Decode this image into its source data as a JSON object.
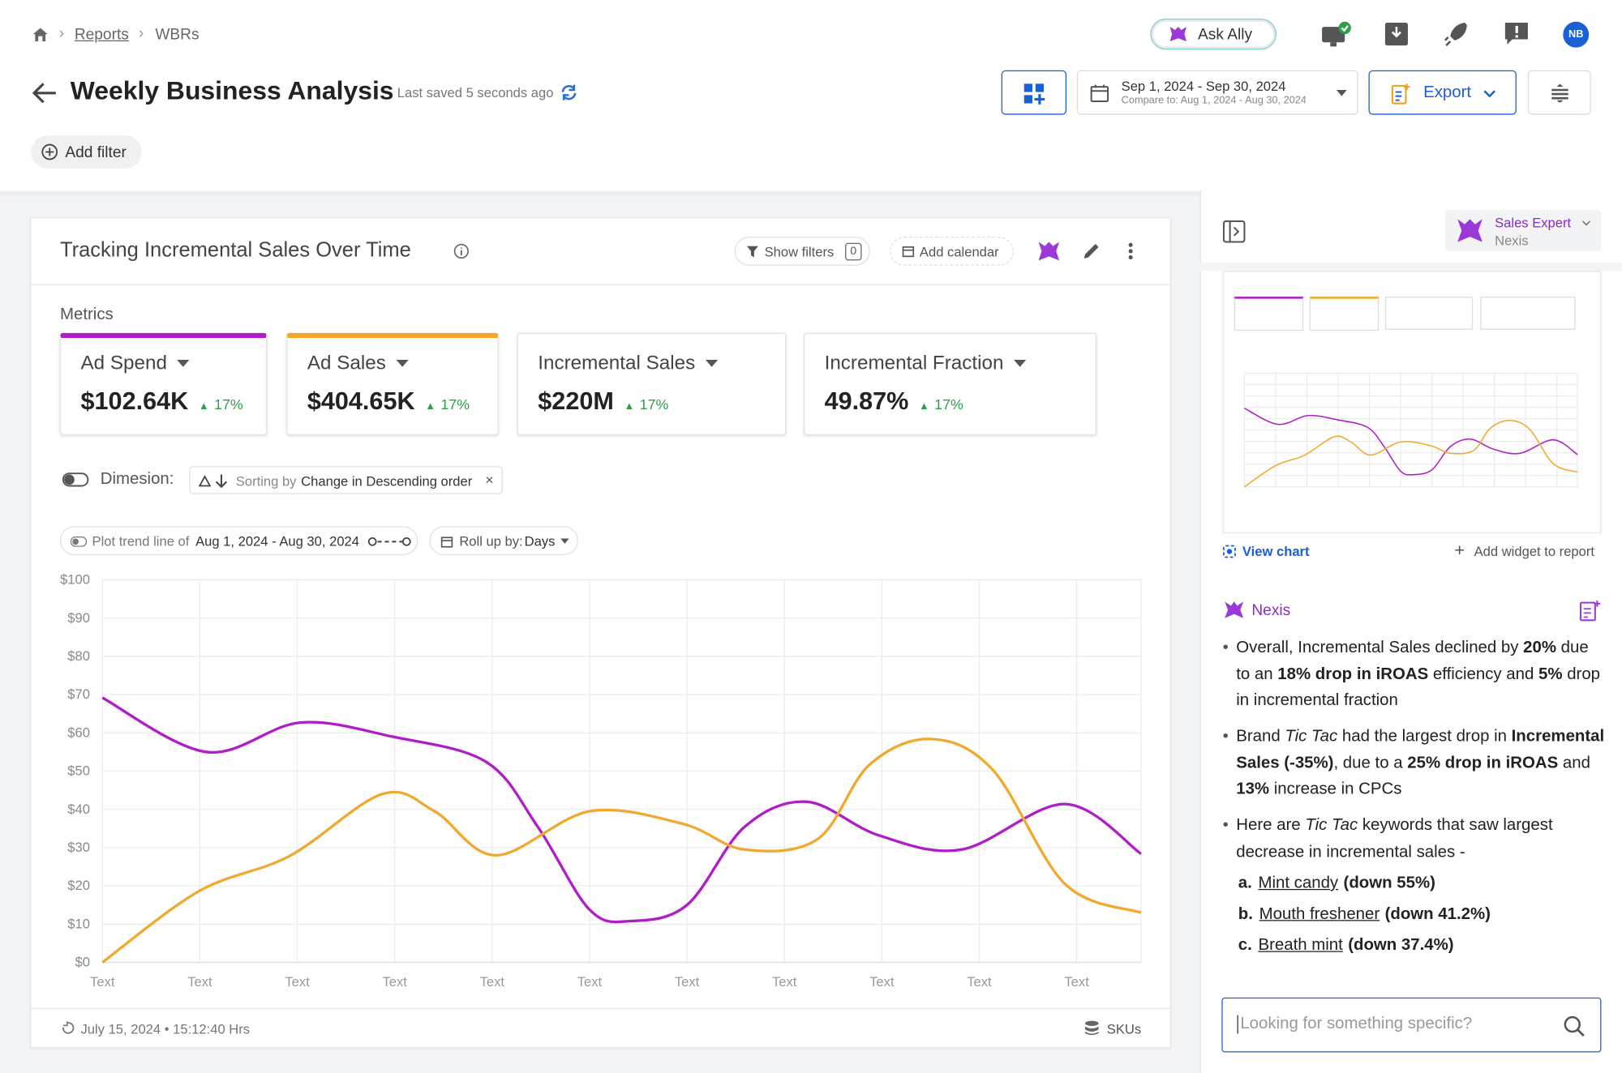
{
  "breadcrumb": [
    "Reports",
    "WBRs"
  ],
  "header": {
    "title": "Weekly Business Analysis",
    "saved": "Last saved 5 seconds ago",
    "ask": "Ask Ally",
    "avatar": "NB",
    "date_range": "Sep 1, 2024 - Sep 30, 2024",
    "compare": "Compare to: Aug 1, 2024 - Aug 30, 2024",
    "export": "Export"
  },
  "add_filter": "Add filter",
  "widget": {
    "title": "Tracking Incremental Sales Over Time",
    "show_filters": "Show filters",
    "filter_count": "0",
    "add_calendar": "Add calendar",
    "metrics_label": "Metrics",
    "metrics": [
      {
        "name": "Ad Spend",
        "value": "$102.64K",
        "change": "17%",
        "color": "#b01cc8"
      },
      {
        "name": "Ad Sales",
        "value": "$404.65K",
        "change": "17%",
        "color": "#f5a623"
      },
      {
        "name": "Incremental Sales",
        "value": "$220M",
        "change": "17%"
      },
      {
        "name": "Incremental Fraction",
        "value": "49.87%",
        "change": "17%"
      }
    ],
    "dimension_label": "Dimesion:",
    "sorting": "Sorting by",
    "sort_field": "Change in Descending order",
    "trend_prefix": "Plot trend line of",
    "trend_range": "Aug 1, 2024 - Aug 30, 2024",
    "rollup": "Roll up by:",
    "rollup_value": "Days",
    "timestamp": "July 15, 2024 • 15:12:40 Hrs",
    "skus": "SKUs"
  },
  "chart_data": {
    "type": "line",
    "grid": true,
    "xlim": [
      0,
      10.66
    ],
    "xticks": [
      {
        "value": 0,
        "label": "Text"
      },
      {
        "value": 1,
        "label": "Text"
      },
      {
        "value": 2,
        "label": "Text"
      },
      {
        "value": 3,
        "label": "Text"
      },
      {
        "value": 4,
        "label": "Text"
      },
      {
        "value": 5,
        "label": "Text"
      },
      {
        "value": 6,
        "label": "Text"
      },
      {
        "value": 7,
        "label": "Text"
      },
      {
        "value": 8,
        "label": "Text"
      },
      {
        "value": 9,
        "label": "Text"
      },
      {
        "value": 10,
        "label": "Text"
      }
    ],
    "ylim": [
      0,
      100
    ],
    "yticks": [
      {
        "value": 0,
        "label": "$0"
      },
      {
        "value": 10,
        "label": "$10"
      },
      {
        "value": 20,
        "label": "$20"
      },
      {
        "value": 30,
        "label": "$30"
      },
      {
        "value": 40,
        "label": "$40"
      },
      {
        "value": 50,
        "label": "$50"
      },
      {
        "value": 60,
        "label": "$60"
      },
      {
        "value": 70,
        "label": "$70"
      },
      {
        "value": 80,
        "label": "$80"
      },
      {
        "value": 90,
        "label": "$90"
      },
      {
        "value": 100,
        "label": "$100"
      }
    ],
    "series": [
      {
        "color": "#b01cc8",
        "x": [
          0,
          1.07,
          2.03,
          2.98,
          3.94,
          4.47,
          5.0,
          5.42,
          6.0,
          6.59,
          7.23,
          7.97,
          8.82,
          9.88,
          10.66
        ],
        "values": [
          69.2,
          55,
          62.7,
          59,
          52.4,
          35.4,
          13.8,
          10.8,
          15,
          35.4,
          42,
          33.2,
          29.5,
          41.4,
          28.4
        ]
      },
      {
        "color": "#f0a92e",
        "x": [
          0,
          0.99,
          1.92,
          2.87,
          3.41,
          4.04,
          5.0,
          5.96,
          6.59,
          7.34,
          7.87,
          8.5,
          9.14,
          9.88,
          10.66
        ],
        "values": [
          0,
          18.6,
          27.8,
          44,
          39.5,
          28,
          39.5,
          36.2,
          29.5,
          32.2,
          51.6,
          58.4,
          50.3,
          20.5,
          13
        ]
      }
    ]
  },
  "panel": {
    "expert": "Sales Expert",
    "expert_sub": "Nexis",
    "view_chart": "View chart",
    "add_widget": "Add widget to report",
    "assistant": "Nexis",
    "bullets": [
      [
        {
          "t": "Overall, Incremental Sales declined by "
        },
        {
          "t": "20%",
          "b": true
        },
        {
          "t": " due to an "
        },
        {
          "t": "18% drop in iROAS",
          "b": true
        },
        {
          "t": " efficiency and "
        },
        {
          "t": "5%",
          "b": true
        },
        {
          "t": " drop in incremental fraction"
        }
      ],
      [
        {
          "t": "Brand "
        },
        {
          "t": "Tic Tac",
          "i": true
        },
        {
          "t": " had the largest drop in "
        },
        {
          "t": "Incremental Sales (-35%)",
          "b": true
        },
        {
          "t": ", due to a "
        },
        {
          "t": "25% drop in iROAS",
          "b": true
        },
        {
          "t": " and "
        },
        {
          "t": "13%",
          "b": true
        },
        {
          "t": " increase in CPCs"
        }
      ],
      [
        {
          "t": "Here are "
        },
        {
          "t": "Tic Tac",
          "i": true
        },
        {
          "t": " keywords that saw largest decrease in incremental sales -"
        }
      ]
    ],
    "items": [
      {
        "letter": "a.",
        "link": "Mint candy",
        "rest": "(down 55%)"
      },
      {
        "letter": "b.",
        "link": "Mouth freshener",
        "rest": "(down 41.2%)"
      },
      {
        "letter": "c.",
        "link": "Breath mint",
        "rest": "(down 37.4%)"
      }
    ],
    "search": "Looking for something specific?"
  }
}
